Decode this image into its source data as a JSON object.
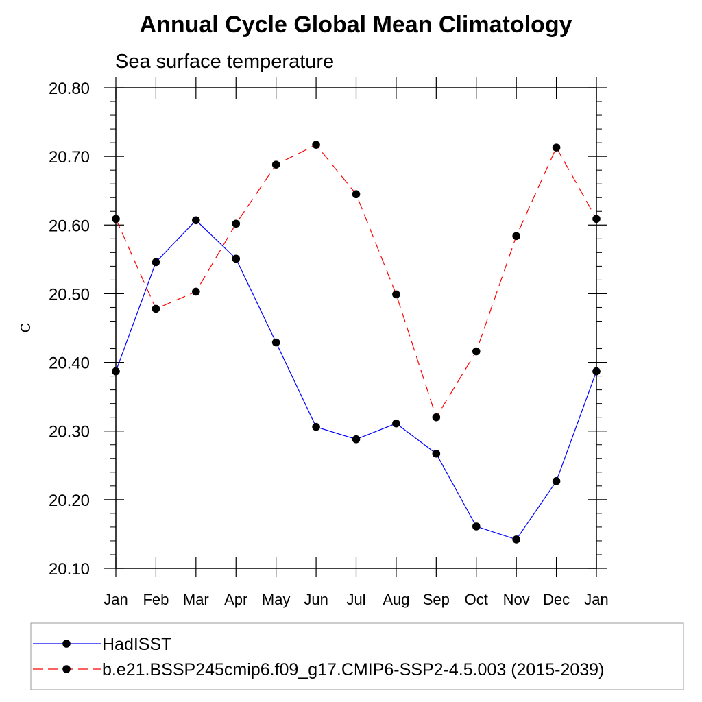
{
  "chart_data": {
    "type": "line",
    "title": "Annual Cycle Global Mean Climatology",
    "subtitle": "Sea surface temperature",
    "xlabel": "",
    "ylabel": "C",
    "categories": [
      "Jan",
      "Feb",
      "Mar",
      "Apr",
      "May",
      "Jun",
      "Jul",
      "Aug",
      "Sep",
      "Oct",
      "Nov",
      "Dec",
      "Jan"
    ],
    "ylim": [
      20.1,
      20.8
    ],
    "yticks": [
      "20.10",
      "20.20",
      "20.30",
      "20.40",
      "20.50",
      "20.60",
      "20.70",
      "20.80"
    ],
    "grid": false,
    "legend_position": "bottom",
    "series": [
      {
        "name": "HadISST",
        "color": "#0000ff",
        "line_style": "solid",
        "marker": "filled-circle",
        "values": [
          20.387,
          20.546,
          20.607,
          20.551,
          20.429,
          20.306,
          20.288,
          20.311,
          20.267,
          20.161,
          20.142,
          20.227,
          20.387
        ]
      },
      {
        "name": "b.e21.BSSP245cmip6.f09_g17.CMIP6-SSP2-4.5.003 (2015-2039)",
        "color": "#ff0000",
        "line_style": "dashed",
        "marker": "filled-circle",
        "values": [
          20.609,
          20.478,
          20.503,
          20.602,
          20.688,
          20.717,
          20.645,
          20.499,
          20.32,
          20.416,
          20.584,
          20.713,
          20.609
        ]
      }
    ]
  }
}
